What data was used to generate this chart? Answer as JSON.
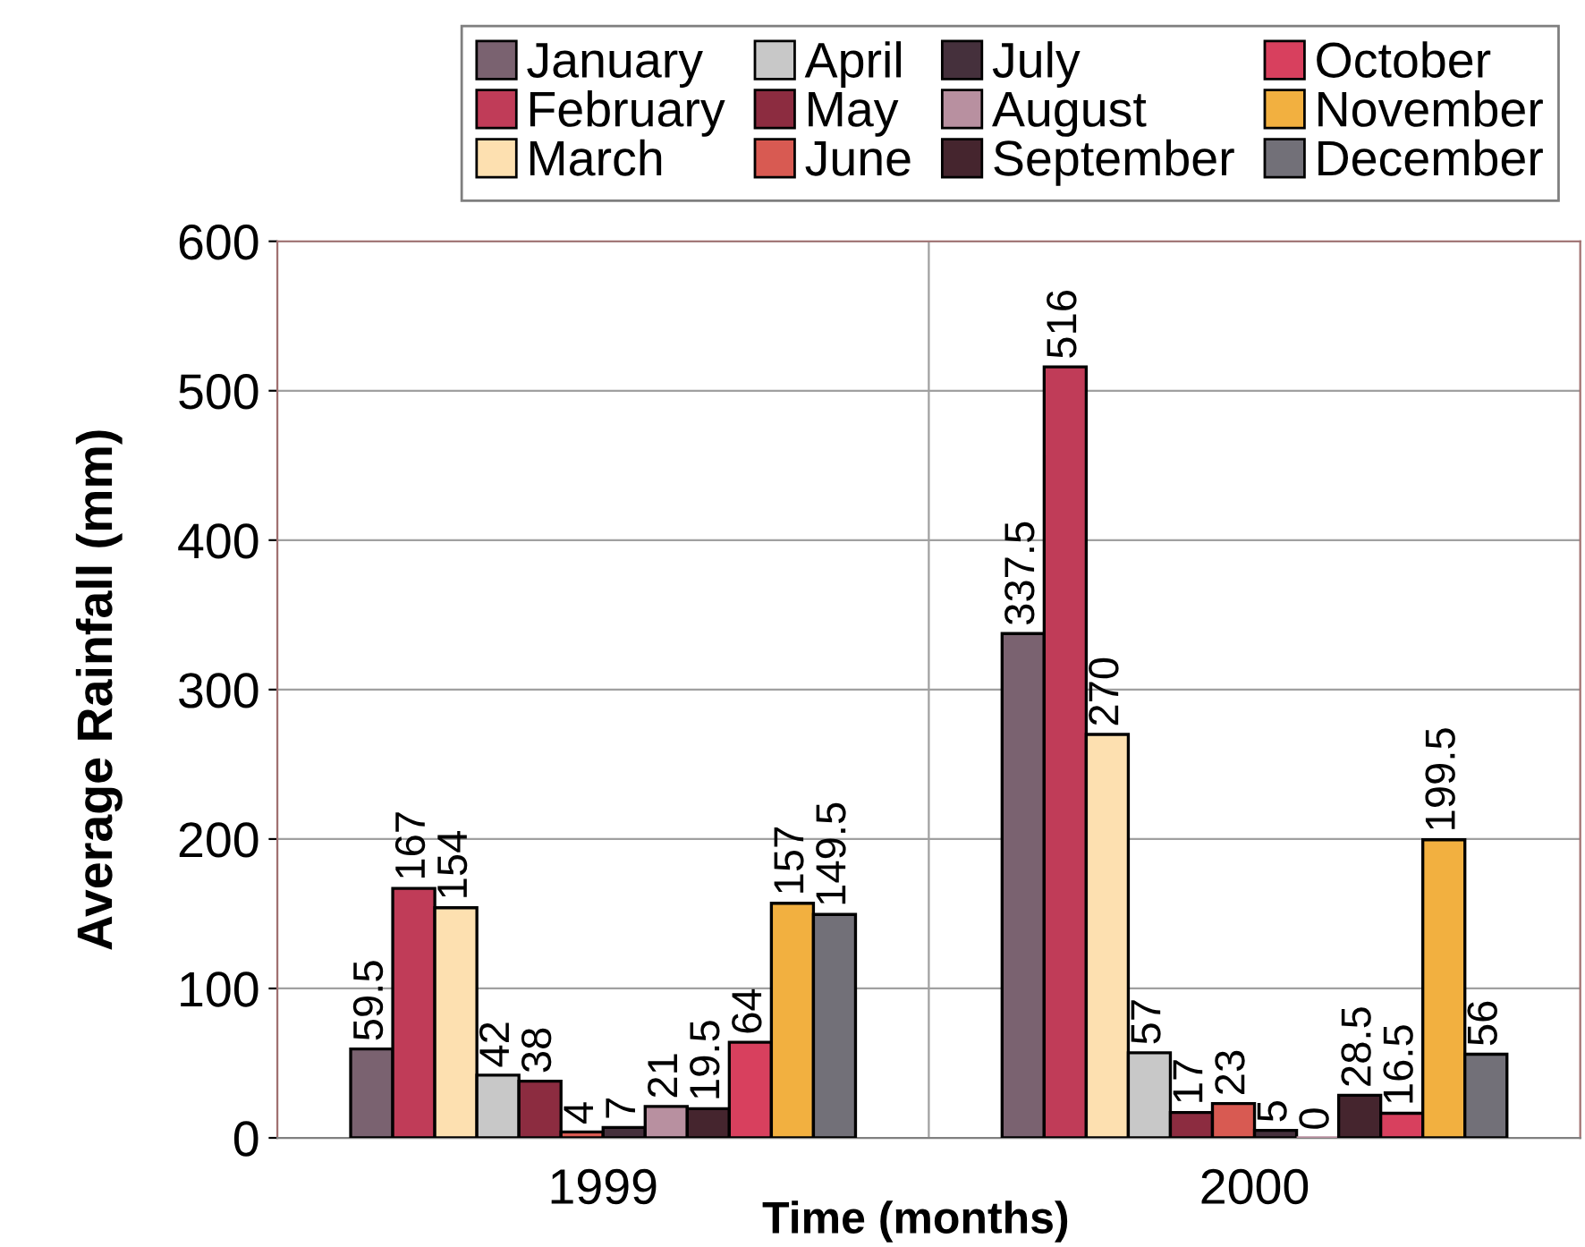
{
  "chart_data": {
    "type": "bar",
    "xlabel": "Time (months)",
    "ylabel": "Average Rainfall (mm)",
    "categories": [
      "1999",
      "2000"
    ],
    "series": [
      {
        "name": "January",
        "color": "#7a6270",
        "values": [
          59.5,
          337.5
        ]
      },
      {
        "name": "February",
        "color": "#c03c58",
        "values": [
          167,
          516
        ]
      },
      {
        "name": "March",
        "color": "#fde0b0",
        "values": [
          154,
          270
        ]
      },
      {
        "name": "April",
        "color": "#c8c8c8",
        "values": [
          42,
          57
        ]
      },
      {
        "name": "May",
        "color": "#8c2c40",
        "values": [
          38,
          17
        ]
      },
      {
        "name": "June",
        "color": "#d85a52",
        "values": [
          4,
          23
        ]
      },
      {
        "name": "July",
        "color": "#45303c",
        "values": [
          7,
          5
        ]
      },
      {
        "name": "August",
        "color": "#b890a0",
        "values": [
          21,
          0
        ]
      },
      {
        "name": "September",
        "color": "#45252e",
        "values": [
          19.5,
          28.5
        ]
      },
      {
        "name": "October",
        "color": "#d8405e",
        "values": [
          64,
          16.5
        ]
      },
      {
        "name": "November",
        "color": "#f2b040",
        "values": [
          157,
          199.5
        ]
      },
      {
        "name": "December",
        "color": "#727078",
        "values": [
          149.5,
          56
        ]
      }
    ],
    "ylim": [
      0,
      600
    ],
    "yticks": [
      0,
      100,
      200,
      300,
      400,
      500,
      600
    ],
    "grid": true,
    "legend": "top",
    "data_labels": true
  }
}
